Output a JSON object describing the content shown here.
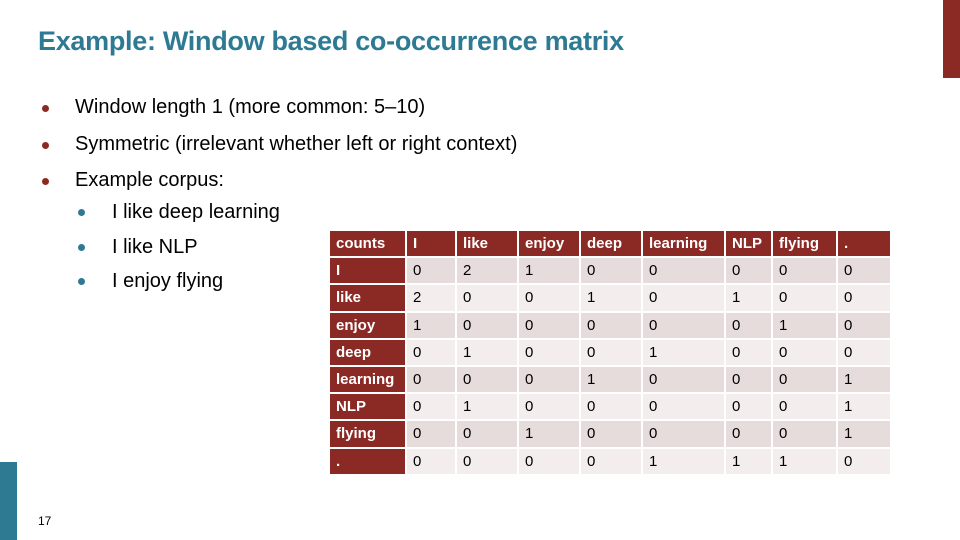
{
  "slide": {
    "title": "Example: Window based co-occurrence matrix",
    "number": "17",
    "colors": {
      "title": "#2e7a93",
      "accent": "#8b2a24",
      "teal_bar": "#2e7a93"
    }
  },
  "bullets": [
    {
      "text": "Window length 1 (more common: 5–10)"
    },
    {
      "text": "Symmetric (irrelevant whether left or right context)"
    },
    {
      "text": "Example corpus:"
    }
  ],
  "corpus": [
    {
      "text": "I like deep learning"
    },
    {
      "text": "I like NLP"
    },
    {
      "text": "I enjoy flying"
    }
  ],
  "matrix": {
    "corner": "counts",
    "columns": [
      "I",
      "like",
      "enjoy",
      "deep",
      "learning",
      "NLP",
      "flying",
      "."
    ],
    "rows": [
      {
        "label": "I",
        "values": [
          "0",
          "2",
          "1",
          "0",
          "0",
          "0",
          "0",
          "0"
        ]
      },
      {
        "label": "like",
        "values": [
          "2",
          "0",
          "0",
          "1",
          "0",
          "1",
          "0",
          "0"
        ]
      },
      {
        "label": "enjoy",
        "values": [
          "1",
          "0",
          "0",
          "0",
          "0",
          "0",
          "1",
          "0"
        ]
      },
      {
        "label": "deep",
        "values": [
          "0",
          "1",
          "0",
          "0",
          "1",
          "0",
          "0",
          "0"
        ]
      },
      {
        "label": "learning",
        "values": [
          "0",
          "0",
          "0",
          "1",
          "0",
          "0",
          "0",
          "1"
        ]
      },
      {
        "label": "NLP",
        "values": [
          "0",
          "1",
          "0",
          "0",
          "0",
          "0",
          "0",
          "1"
        ]
      },
      {
        "label": "flying",
        "values": [
          "0",
          "0",
          "1",
          "0",
          "0",
          "0",
          "0",
          "1"
        ]
      },
      {
        "label": ".",
        "values": [
          "0",
          "0",
          "0",
          "0",
          "1",
          "1",
          "1",
          "0"
        ]
      }
    ]
  }
}
